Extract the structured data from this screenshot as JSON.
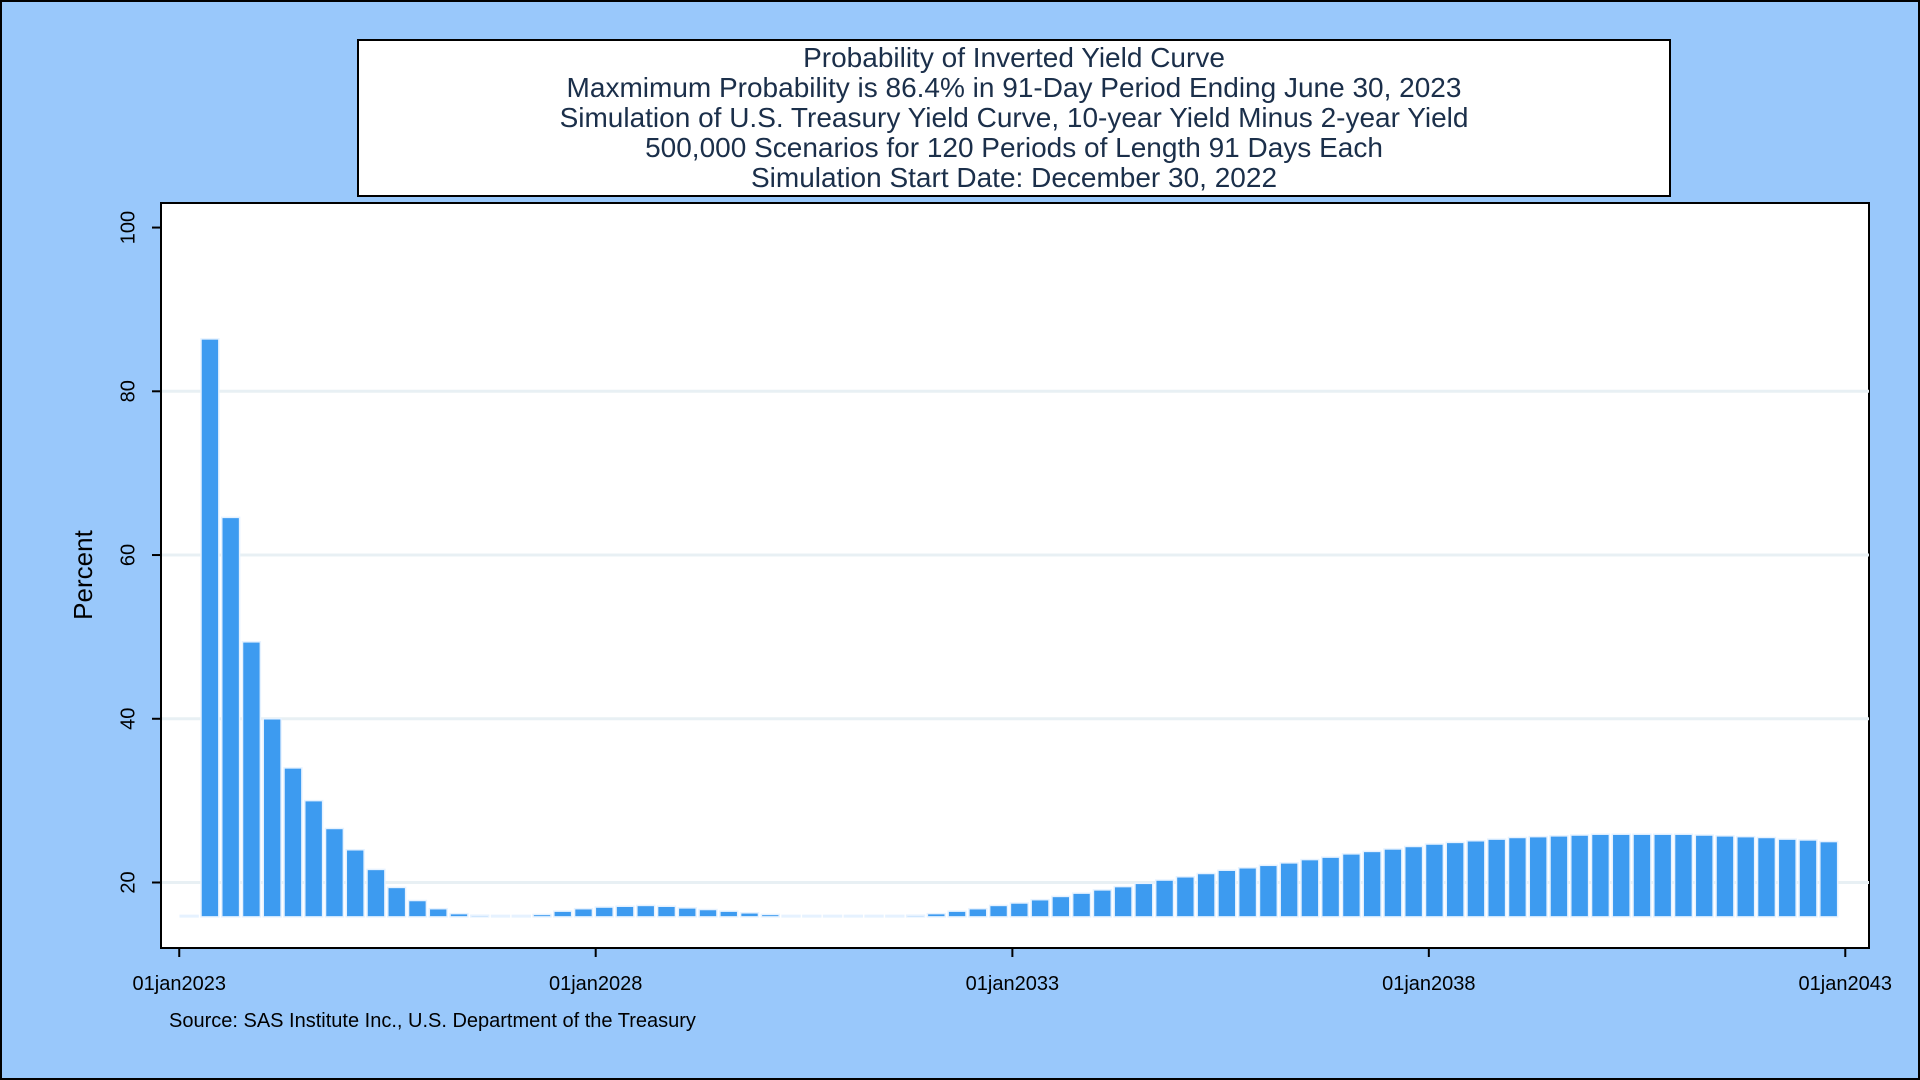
{
  "colors": {
    "background": "#99c8fb",
    "plot_background": "#ffffff",
    "bar_fill": "#3d9bf0",
    "bar_outline": "#e6f2ff",
    "gridline": "#e8f0f4",
    "title_text": "#1b2f4a"
  },
  "title_lines": [
    "Probability of Inverted Yield Curve",
    "Maxmimum Probability is 86.4% in 91-Day Period Ending June 30, 2023",
    "Simulation of U.S. Treasury Yield Curve, 10-year Yield Minus 2-year Yield",
    "500,000 Scenarios for 120 Periods of Length 91 Days Each",
    "Simulation Start Date: December 30, 2022"
  ],
  "source_note": "Source: SAS Institute Inc., U.S. Department of the Treasury",
  "chart_data": {
    "type": "bar",
    "ylabel": "Percent",
    "xlabel": "",
    "y_ticks": [
      20,
      40,
      60,
      80,
      100
    ],
    "x_ticks": [
      "01jan2023",
      "01jan2028",
      "01jan2033",
      "01jan2038",
      "01jan2043"
    ],
    "ylim": [
      12,
      103
    ],
    "xlim": [
      "2022-10-13",
      "2043-04-15"
    ],
    "bar_base": 15.8,
    "grid": true,
    "period_days": 91,
    "period_end_dates": [
      "2023-03-31",
      "2023-06-30",
      "2023-09-29",
      "2023-12-29",
      "2024-03-29",
      "2024-06-28",
      "2024-09-27",
      "2024-12-27",
      "2025-03-28",
      "2025-06-27",
      "2025-09-26",
      "2025-12-26",
      "2026-03-27",
      "2026-06-26",
      "2026-09-25",
      "2026-12-25",
      "2027-03-26",
      "2027-06-25",
      "2027-09-24",
      "2027-12-24",
      "2028-03-24",
      "2028-06-23",
      "2028-09-22",
      "2028-12-22",
      "2029-03-23",
      "2029-06-22",
      "2029-09-21",
      "2029-12-21",
      "2030-03-22",
      "2030-06-21",
      "2030-09-20",
      "2030-12-20",
      "2031-03-21",
      "2031-06-20",
      "2031-09-19",
      "2031-12-19",
      "2032-03-19",
      "2032-06-18",
      "2032-09-17",
      "2032-12-17",
      "2033-03-18",
      "2033-06-17",
      "2033-09-16",
      "2033-12-16",
      "2034-03-17",
      "2034-06-16",
      "2034-09-15",
      "2034-12-15",
      "2035-03-16",
      "2035-06-15",
      "2035-09-14",
      "2035-12-14",
      "2036-03-14",
      "2036-06-13",
      "2036-09-12",
      "2036-12-12",
      "2037-03-13",
      "2037-06-12",
      "2037-09-11",
      "2037-12-11",
      "2038-03-12",
      "2038-06-11",
      "2038-09-10",
      "2038-12-10",
      "2039-03-11",
      "2039-06-10",
      "2039-09-09",
      "2039-12-09",
      "2040-03-09",
      "2040-06-08",
      "2040-09-07",
      "2040-12-07",
      "2041-03-08",
      "2041-06-07",
      "2041-09-06",
      "2041-12-06",
      "2042-03-07",
      "2042-06-06",
      "2042-09-05",
      "2042-12-05"
    ],
    "values": [
      15.8,
      86.4,
      64.6,
      49.4,
      40.0,
      34.0,
      30.0,
      26.6,
      24.0,
      21.6,
      19.4,
      17.8,
      16.8,
      16.2,
      16.0,
      15.9,
      15.9,
      16.1,
      16.5,
      16.8,
      17.0,
      17.1,
      17.2,
      17.1,
      16.9,
      16.7,
      16.5,
      16.3,
      16.1,
      15.9,
      15.8,
      15.8,
      15.8,
      15.8,
      15.8,
      16.0,
      16.2,
      16.5,
      16.8,
      17.2,
      17.5,
      17.9,
      18.3,
      18.7,
      19.1,
      19.5,
      19.9,
      20.3,
      20.7,
      21.1,
      21.5,
      21.8,
      22.1,
      22.4,
      22.8,
      23.1,
      23.5,
      23.8,
      24.1,
      24.4,
      24.7,
      24.9,
      25.1,
      25.3,
      25.5,
      25.6,
      25.7,
      25.8,
      25.9,
      25.9,
      25.9,
      25.9,
      25.9,
      25.8,
      25.7,
      25.6,
      25.5,
      25.3,
      25.2,
      25.0
    ]
  }
}
